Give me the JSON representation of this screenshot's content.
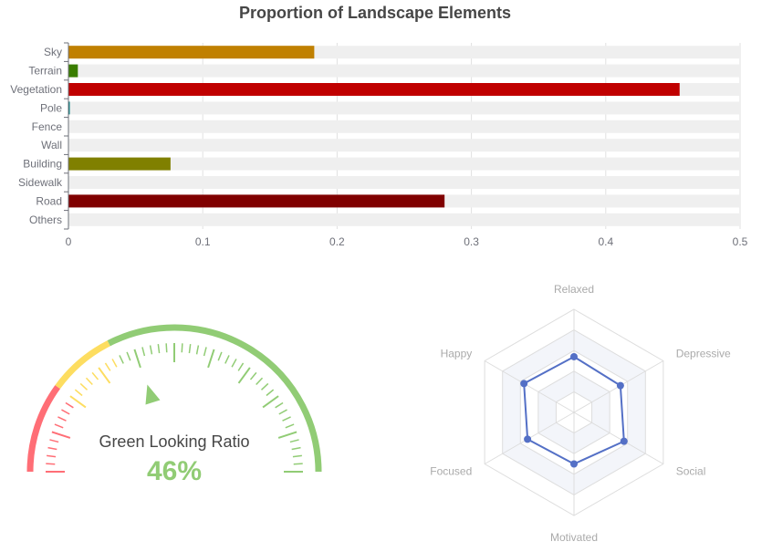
{
  "title": "Proportion of Landscape Elements",
  "chart_data": [
    {
      "type": "bar",
      "orientation": "horizontal",
      "categories": [
        "Sky",
        "Terrain",
        "Vegetation",
        "Pole",
        "Fence",
        "Wall",
        "Building",
        "Sidewalk",
        "Road",
        "Others"
      ],
      "values": [
        0.183,
        0.007,
        0.455,
        0.001,
        0,
        0,
        0.076,
        0,
        0.28,
        0
      ],
      "colors": [
        "#c08000",
        "#3a7d00",
        "#c00000",
        "#008080",
        "#888888",
        "#888888",
        "#808000",
        "#888888",
        "#800000",
        "#888888"
      ],
      "background_bar_color": "#efefef",
      "xlim": [
        0,
        0.5
      ],
      "xticks": [
        "0",
        "0.1",
        "0.2",
        "0.3",
        "0.4",
        "0.5"
      ],
      "grid": true
    },
    {
      "type": "gauge",
      "label": "Green Looking Ratio",
      "value_text": "46%",
      "value": 0.46,
      "colors": {
        "low": "#ff6e76",
        "mid": "#fddd60",
        "high": "#91cc75"
      }
    },
    {
      "type": "radar",
      "indicators": [
        "Relaxed",
        "Depressive",
        "Social",
        "Motivated",
        "Focused",
        "Happy"
      ],
      "values": [
        0.54,
        0.52,
        0.56,
        0.5,
        0.52,
        0.56
      ],
      "max": 1,
      "color": "#5470c6"
    }
  ]
}
